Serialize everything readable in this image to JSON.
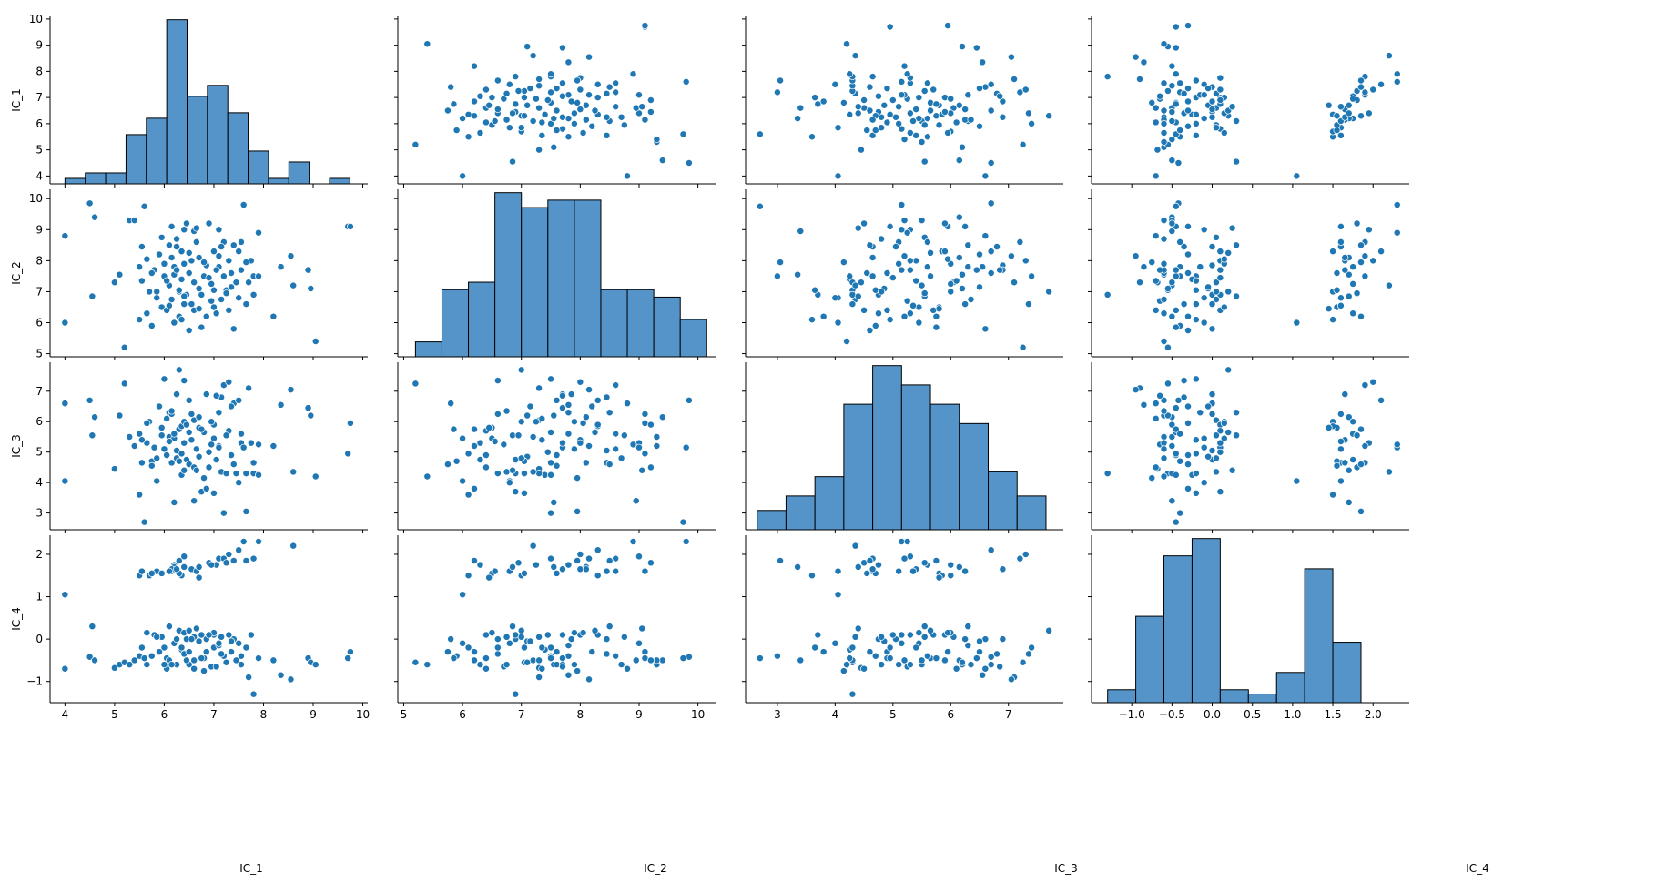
{
  "chart_data": {
    "type": "scatter",
    "kind": "pairplot",
    "variables": [
      "IC_1",
      "IC_2",
      "IC_3",
      "IC_4"
    ],
    "colors": {
      "marker": "#1f77b4",
      "bar_fill": "#5594c8",
      "bar_edge": "#000000",
      "axis": "#000000"
    },
    "grid": false,
    "axes": {
      "IC_1": {
        "lim": [
          3.7,
          10.1
        ],
        "ticks": [
          4,
          5,
          6,
          7,
          8,
          9,
          10
        ]
      },
      "IC_2": {
        "lim": [
          4.9,
          10.3
        ],
        "ticks": [
          5,
          6,
          7,
          8,
          9,
          10
        ]
      },
      "IC_3": {
        "lim": [
          2.45,
          7.95
        ],
        "ticks": [
          3,
          4,
          5,
          6,
          7
        ]
      },
      "IC_4": {
        "lim": [
          -1.5,
          2.45
        ],
        "ticks": [
          -1.0,
          -0.5,
          0.0,
          0.5,
          1.0,
          1.5,
          2.0
        ]
      }
    },
    "y_axis_ticks": {
      "IC_1": [
        4,
        5,
        6,
        7,
        8,
        9,
        10
      ],
      "IC_2": [
        5,
        6,
        7,
        8,
        9,
        10
      ],
      "IC_3": [
        3,
        4,
        5,
        6,
        7
      ],
      "IC_4": [
        -1,
        0,
        1,
        2
      ]
    },
    "histograms": {
      "IC_1": {
        "edges": [
          4.0,
          4.41,
          4.82,
          5.23,
          5.64,
          6.05,
          6.46,
          6.87,
          7.28,
          7.69,
          8.1,
          8.51,
          8.92,
          9.33,
          9.74
        ],
        "counts": [
          1,
          2,
          2,
          9,
          12,
          30,
          16,
          18,
          13,
          6,
          1,
          4,
          0,
          1
        ]
      },
      "IC_2": {
        "edges": [
          5.2,
          5.65,
          6.1,
          6.55,
          7.0,
          7.45,
          7.9,
          8.35,
          8.8,
          9.25,
          9.7,
          10.15
        ],
        "counts": [
          2,
          9,
          10,
          22,
          20,
          21,
          21,
          9,
          9,
          8,
          5
        ]
      },
      "IC_3": {
        "edges": [
          2.65,
          3.15,
          3.65,
          4.15,
          4.65,
          5.15,
          5.65,
          6.15,
          6.65,
          7.15,
          7.65
        ],
        "counts": [
          4,
          7,
          11,
          26,
          34,
          30,
          26,
          22,
          12,
          7
        ]
      },
      "IC_4": {
        "edges": [
          -1.3,
          -0.95,
          -0.6,
          -0.25,
          0.1,
          0.45,
          0.8,
          1.15,
          1.5,
          1.85,
          2.2
        ],
        "counts": [
          3,
          20,
          34,
          38,
          3,
          2,
          7,
          31,
          14,
          0
        ]
      }
    },
    "points": [
      [
        4.0,
        8.8,
        6.6,
        -0.7
      ],
      [
        4.0,
        6.0,
        4.05,
        1.05
      ],
      [
        4.5,
        9.85,
        6.7,
        -0.42
      ],
      [
        4.55,
        6.85,
        5.55,
        0.3
      ],
      [
        4.6,
        9.4,
        6.15,
        -0.5
      ],
      [
        5.0,
        7.3,
        4.45,
        -0.68
      ],
      [
        5.1,
        7.55,
        6.2,
        -0.6
      ],
      [
        5.2,
        5.2,
        7.25,
        -0.55
      ],
      [
        5.3,
        9.3,
        5.5,
        -0.6
      ],
      [
        5.4,
        9.3,
        5.2,
        -0.5
      ],
      [
        5.5,
        7.8,
        5.6,
        -0.4
      ],
      [
        5.5,
        6.1,
        3.6,
        1.5
      ],
      [
        5.55,
        8.45,
        4.65,
        1.6
      ],
      [
        5.6,
        9.75,
        2.7,
        -0.45
      ],
      [
        5.65,
        6.3,
        5.3,
        -0.6
      ],
      [
        5.7,
        7.0,
        6.0,
        1.5
      ],
      [
        5.75,
        5.9,
        4.7,
        -0.4
      ],
      [
        5.8,
        7.7,
        5.15,
        0.1
      ],
      [
        5.85,
        6.8,
        4.05,
        1.6
      ],
      [
        5.9,
        8.2,
        6.5,
        -0.3
      ],
      [
        5.95,
        6.5,
        5.8,
        1.55
      ],
      [
        6.0,
        7.5,
        7.4,
        -0.2
      ],
      [
        6.05,
        6.4,
        4.9,
        -0.45
      ],
      [
        6.1,
        8.5,
        6.3,
        0.3
      ],
      [
        6.1,
        7.2,
        5.5,
        -0.5
      ],
      [
        6.15,
        9.1,
        6.25,
        1.6
      ],
      [
        6.2,
        6.0,
        5.45,
        -0.1
      ],
      [
        6.2,
        7.8,
        5.6,
        1.75
      ],
      [
        6.25,
        8.7,
        4.8,
        -0.6
      ],
      [
        6.3,
        7.0,
        7.7,
        0.2
      ],
      [
        6.3,
        6.2,
        5.75,
        1.85
      ],
      [
        6.35,
        7.4,
        4.25,
        -0.25
      ],
      [
        6.35,
        8.3,
        5.85,
        1.5
      ],
      [
        6.4,
        6.6,
        7.35,
        -0.35
      ],
      [
        6.4,
        9.0,
        5.3,
        1.95
      ],
      [
        6.45,
        6.9,
        4.75,
        0.0
      ],
      [
        6.5,
        7.6,
        6.7,
        -0.6
      ],
      [
        6.5,
        5.75,
        4.6,
        -0.3
      ],
      [
        6.55,
        8.0,
        5.4,
        1.65
      ],
      [
        6.6,
        7.3,
        6.05,
        0.05
      ],
      [
        6.6,
        6.4,
        4.5,
        -0.7
      ],
      [
        6.65,
        8.6,
        5.1,
        1.6
      ],
      [
        6.7,
        7.1,
        4.85,
        -0.05
      ],
      [
        6.7,
        8.1,
        6.15,
        1.7
      ],
      [
        6.75,
        6.9,
        3.7,
        0.1
      ],
      [
        6.8,
        7.5,
        5.65,
        -0.45
      ],
      [
        6.85,
        7.85,
        6.9,
        0.0
      ],
      [
        6.9,
        9.2,
        4.5,
        1.8
      ],
      [
        6.95,
        6.7,
        5.25,
        -0.65
      ],
      [
        7.0,
        8.3,
        5.9,
        0.1
      ],
      [
        7.0,
        7.05,
        3.65,
        -0.2
      ],
      [
        7.05,
        6.3,
        4.75,
        1.75
      ],
      [
        7.1,
        7.8,
        6.3,
        -0.15
      ],
      [
        7.1,
        8.15,
        5.2,
        1.9
      ],
      [
        7.15,
        6.75,
        4.35,
        0.05
      ],
      [
        7.2,
        7.5,
        3.0,
        -0.4
      ],
      [
        7.2,
        8.6,
        7.2,
        1.9
      ],
      [
        7.25,
        7.05,
        4.3,
        -0.55
      ],
      [
        7.3,
        6.4,
        5.7,
        0.1
      ],
      [
        7.3,
        8.0,
        7.3,
        2.0
      ],
      [
        7.35,
        7.6,
        4.9,
        -0.3
      ],
      [
        7.4,
        5.8,
        6.6,
        0.0
      ],
      [
        7.45,
        7.3,
        4.3,
        -0.5
      ],
      [
        7.5,
        8.3,
        6.7,
        2.1
      ],
      [
        7.5,
        6.8,
        4.0,
        -0.1
      ],
      [
        7.55,
        7.7,
        5.3,
        -0.6
      ],
      [
        7.6,
        9.8,
        5.15,
        2.3
      ],
      [
        7.65,
        6.6,
        4.3,
        -0.2
      ],
      [
        7.7,
        7.3,
        7.1,
        -0.9
      ],
      [
        7.75,
        8.0,
        5.3,
        0.1
      ],
      [
        7.8,
        7.5,
        4.65,
        1.9
      ],
      [
        7.8,
        6.9,
        4.3,
        -1.3
      ],
      [
        7.9,
        7.5,
        4.25,
        -0.45
      ],
      [
        7.9,
        8.9,
        5.25,
        2.3
      ],
      [
        8.2,
        6.2,
        5.2,
        -0.5
      ],
      [
        8.35,
        7.8,
        6.55,
        -0.85
      ],
      [
        8.55,
        8.15,
        7.05,
        -0.95
      ],
      [
        8.6,
        7.2,
        4.35,
        2.2
      ],
      [
        8.9,
        7.7,
        6.45,
        -0.45
      ],
      [
        8.95,
        7.1,
        6.2,
        -0.55
      ],
      [
        9.05,
        5.4,
        4.2,
        -0.6
      ],
      [
        9.7,
        9.1,
        4.95,
        -0.45
      ],
      [
        9.75,
        9.1,
        5.95,
        -0.3
      ],
      [
        6.4,
        7.9,
        6.0,
        0.15
      ],
      [
        6.15,
        6.75,
        6.35,
        -0.6
      ],
      [
        6.25,
        8.45,
        5.05,
        0.0
      ],
      [
        6.3,
        7.05,
        4.7,
        1.55
      ],
      [
        6.5,
        8.25,
        5.65,
        0.2
      ],
      [
        6.05,
        7.35,
        6.1,
        -0.7
      ],
      [
        5.95,
        8.75,
        5.55,
        0.05
      ],
      [
        6.7,
        6.45,
        5.8,
        1.45
      ],
      [
        6.8,
        7.95,
        4.15,
        -0.75
      ],
      [
        7.0,
        6.5,
        5.45,
        0.15
      ],
      [
        6.6,
        8.95,
        3.4,
        -0.5
      ],
      [
        6.35,
        6.1,
        4.95,
        -0.2
      ],
      [
        6.2,
        7.55,
        3.35,
        1.7
      ],
      [
        7.15,
        8.45,
        6.8,
        -0.35
      ],
      [
        6.9,
        7.45,
        5.0,
        0.1
      ],
      [
        6.45,
        9.2,
        5.9,
        -0.5
      ],
      [
        7.25,
        6.95,
        5.55,
        1.8
      ],
      [
        6.55,
        6.6,
        6.25,
        0.0
      ],
      [
        6.0,
        7.9,
        5.1,
        -0.6
      ],
      [
        7.4,
        8.5,
        4.6,
        1.85
      ],
      [
        6.85,
        6.2,
        3.8,
        -0.3
      ],
      [
        5.75,
        7.6,
        4.55,
        1.55
      ],
      [
        5.65,
        8.05,
        5.95,
        0.15
      ],
      [
        6.95,
        7.25,
        6.0,
        1.75
      ],
      [
        7.1,
        9.0,
        5.15,
        -0.1
      ],
      [
        6.15,
        8.1,
        4.65,
        1.65
      ],
      [
        6.75,
        5.85,
        5.75,
        -0.45
      ],
      [
        7.35,
        7.15,
        6.5,
        -0.05
      ],
      [
        6.1,
        6.55,
        5.35,
        1.6
      ],
      [
        7.55,
        8.6,
        5.6,
        -0.4
      ],
      [
        6.25,
        7.7,
        6.9,
        1.65
      ],
      [
        5.85,
        7.0,
        4.8,
        0.05
      ],
      [
        7.65,
        7.95,
        3.05,
        1.85
      ],
      [
        6.65,
        9.05,
        4.4,
        0.25
      ],
      [
        7.05,
        7.7,
        6.85,
        -0.65
      ],
      [
        6.4,
        6.85,
        4.4,
        1.7
      ],
      [
        5.55,
        7.35,
        5.4,
        -0.2
      ]
    ],
    "xlabel_ic1": "IC_1",
    "xlabel_ic2": "IC_2",
    "xlabel_ic3": "IC_3",
    "xlabel_ic4": "IC_4"
  }
}
